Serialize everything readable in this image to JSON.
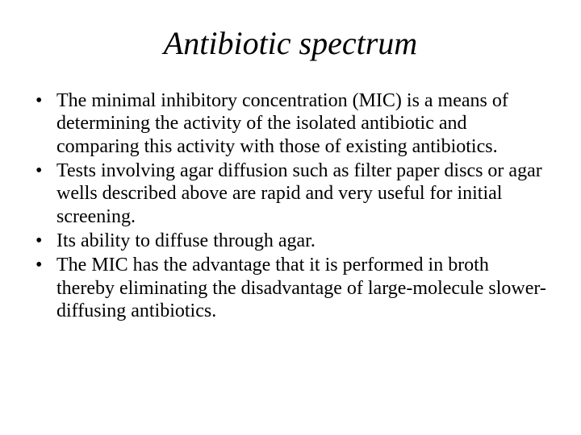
{
  "slide": {
    "title": "Antibiotic spectrum",
    "title_fontsize": 40,
    "title_style": "italic",
    "body_fontsize": 24,
    "font_family": "Times New Roman",
    "background_color": "#ffffff",
    "text_color": "#000000",
    "bullets": [
      "The minimal inhibitory concentration (MIC) is a means of determining the activity of the isolated antibiotic and comparing this activity with those of existing antibiotics.",
      "Tests involving agar diffusion such as filter paper discs or agar wells described above are rapid and very useful for initial screening.",
      "Its ability to diffuse through agar.",
      "The MIC has the advantage that it is performed in broth thereby eliminating the disadvantage of large-molecule slower-diffusing antibiotics."
    ]
  }
}
